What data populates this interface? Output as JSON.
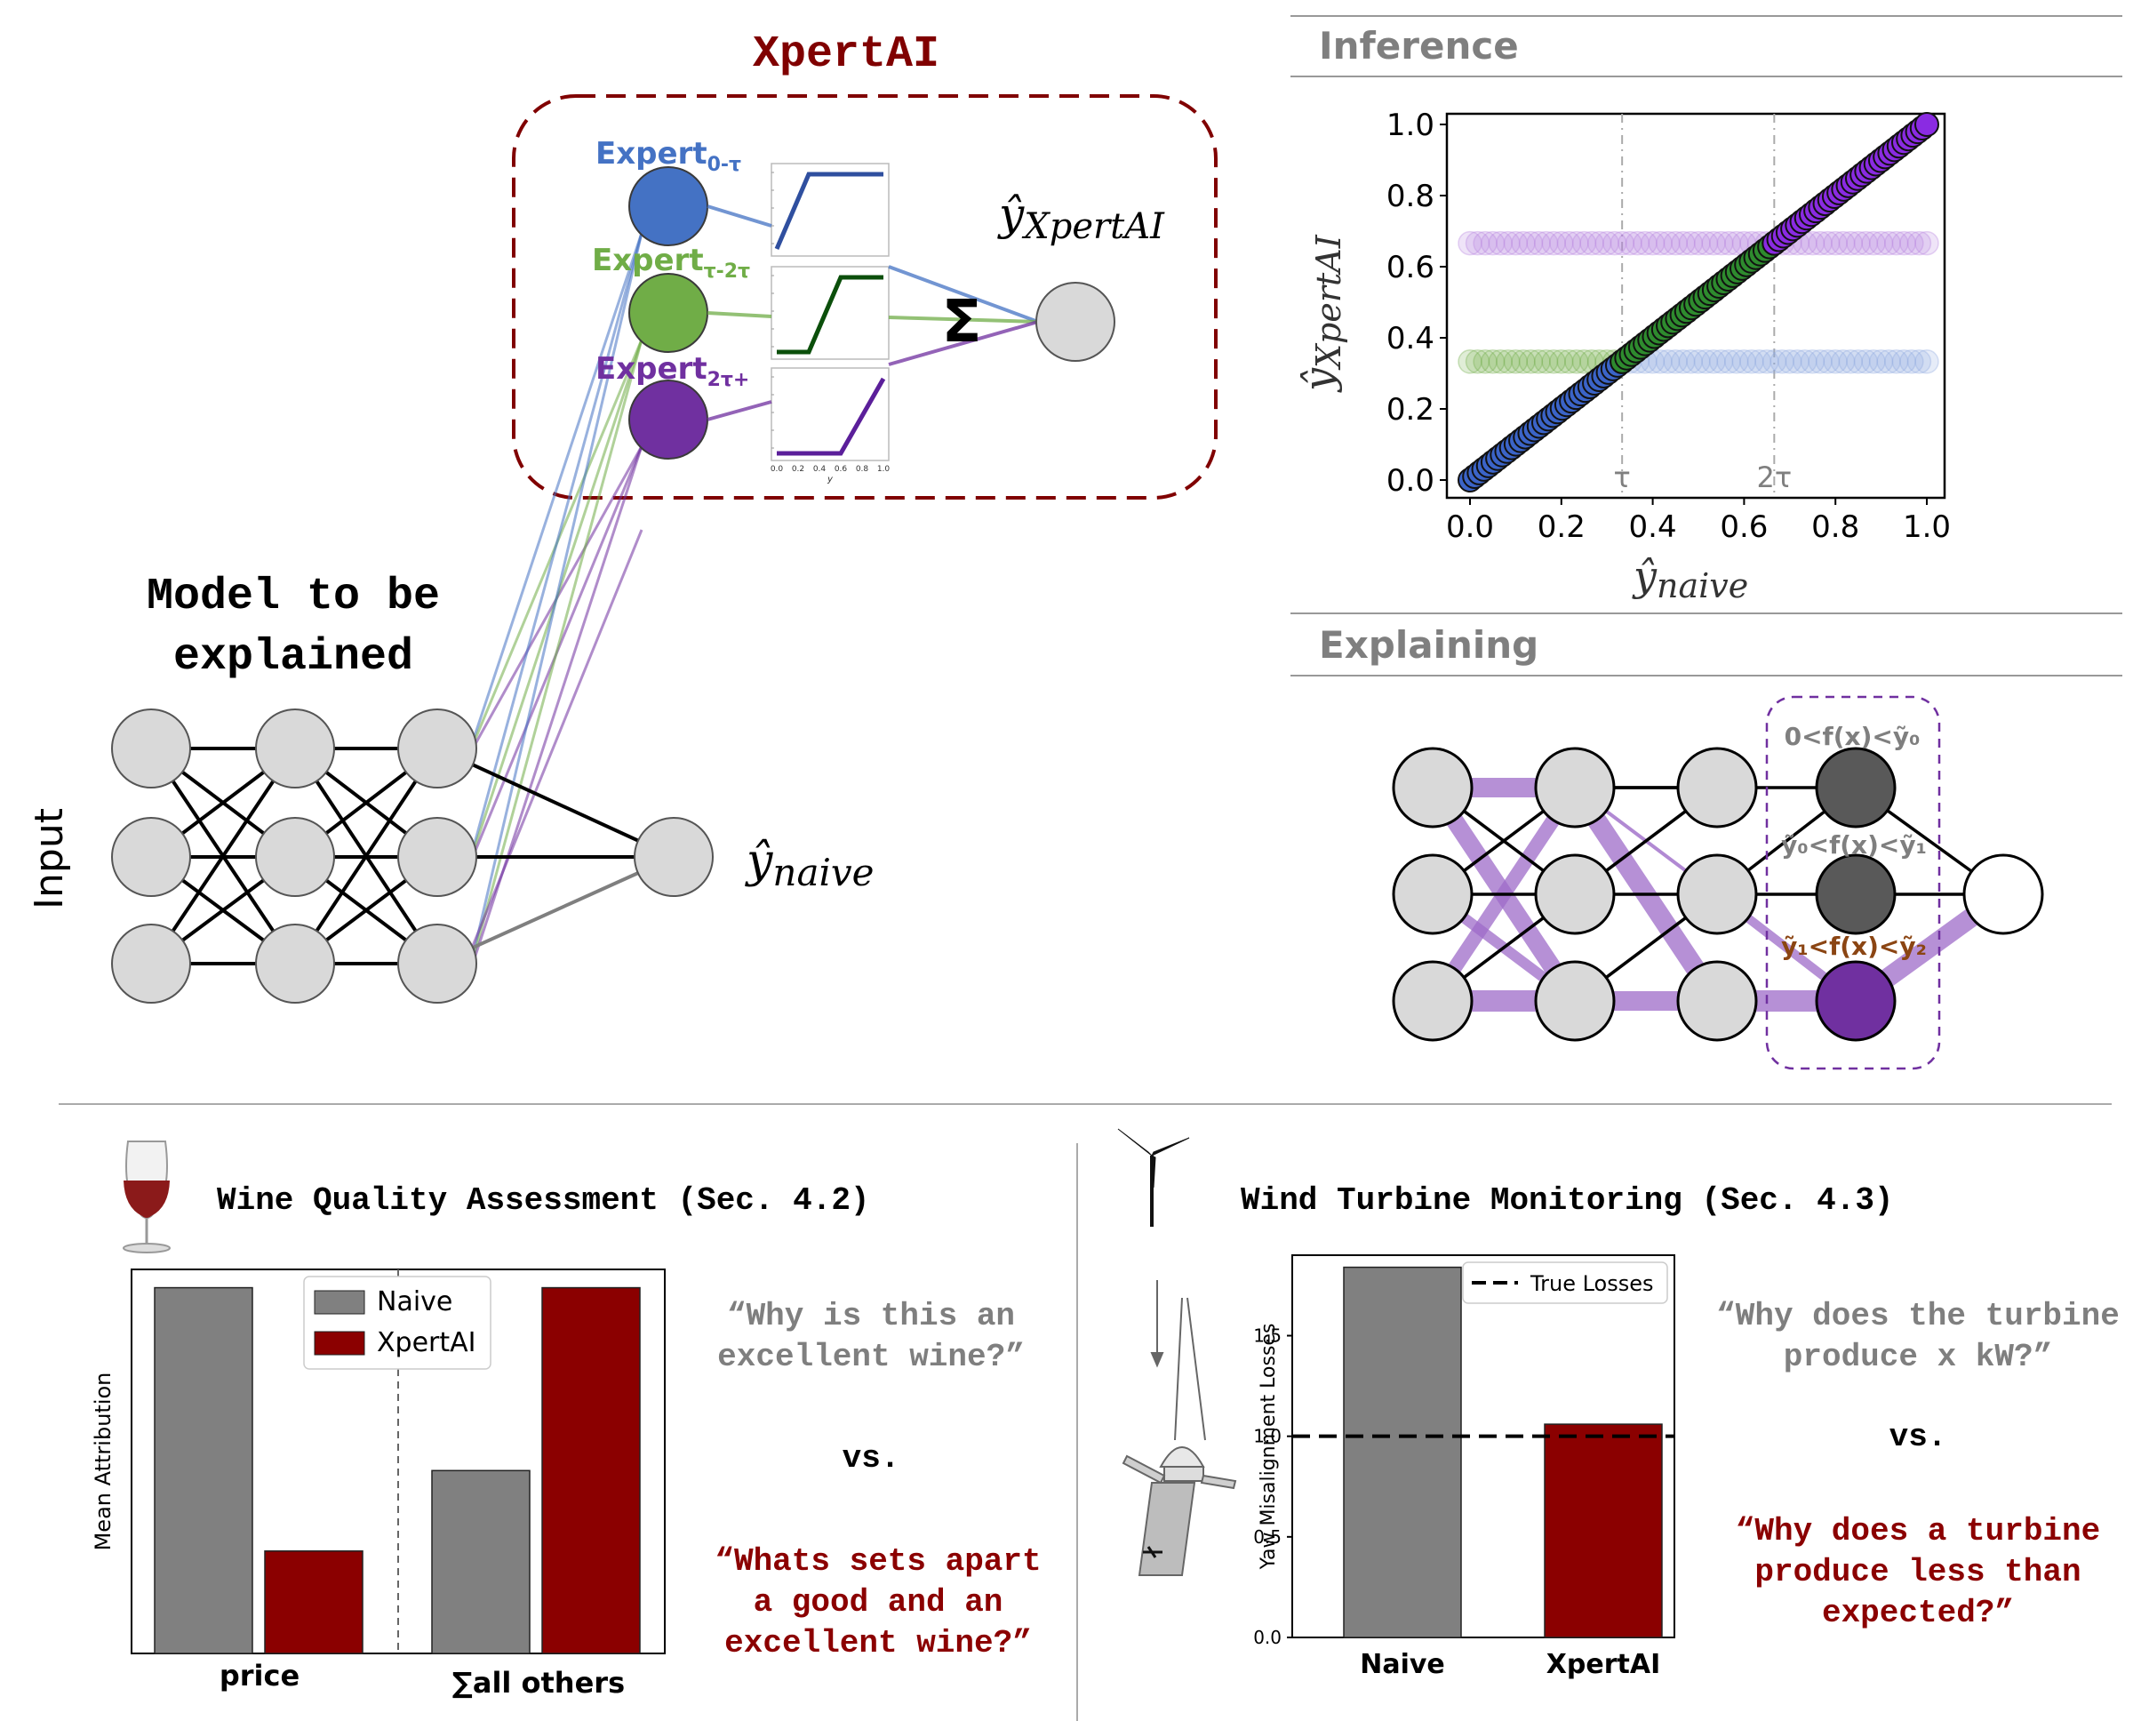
{
  "figure": {
    "xpertai_title": "XpertAI",
    "model_title_line1": "Model to be",
    "model_title_line2": "explained",
    "input_label": "Input",
    "naive_output_label": "ŷ",
    "naive_output_sub": "naive",
    "xpertai_output_label": "ŷ",
    "xpertai_output_sub": "XpertAI",
    "sum_symbol": "Σ",
    "experts": [
      {
        "label": "Expert",
        "sub": "0-τ",
        "color": "#4472c4",
        "ramp": [
          0.0,
          0.3
        ]
      },
      {
        "label": "Expert",
        "sub": "τ-2τ",
        "color": "#70ad47",
        "ramp": [
          0.3,
          0.6
        ]
      },
      {
        "label": "Expert",
        "sub": "2τ+",
        "color": "#7030a0",
        "ramp": [
          0.6,
          1.0
        ]
      }
    ],
    "mini_plot_ticks": [
      "0.0",
      "0.2",
      "0.4",
      "0.6",
      "0.8",
      "1.0"
    ],
    "mini_plot_xlabel": "y"
  },
  "inference": {
    "section_title": "Inference",
    "chart_data": {
      "type": "scatter",
      "xlabel_base": "ŷ",
      "xlabel_sub": "naive",
      "ylabel_base": "ŷ",
      "ylabel_sub": "XpertAI",
      "xlim": [
        0.0,
        1.0
      ],
      "ylim": [
        0.0,
        1.0
      ],
      "xticks": [
        "0.0",
        "0.2",
        "0.4",
        "0.6",
        "0.8",
        "1.0"
      ],
      "yticks": [
        "0.0",
        "0.2",
        "0.4",
        "0.6",
        "0.8",
        "1.0"
      ],
      "vlines": [
        {
          "x": 0.333,
          "label": "τ"
        },
        {
          "x": 0.666,
          "label": "2τ"
        }
      ],
      "series": [
        {
          "x_range": [
            0.0,
            0.333
          ],
          "y": "identity",
          "color": "#3b64c8"
        },
        {
          "x_range": [
            0.333,
            0.666
          ],
          "y": "identity",
          "color": "#2e8b2e"
        },
        {
          "x_range": [
            0.666,
            1.0
          ],
          "y": "identity",
          "color": "#8a2be2"
        }
      ],
      "faded_bands": [
        {
          "y": 0.333,
          "x_range": [
            0.0,
            0.333
          ],
          "color": "#70ad47"
        },
        {
          "y": 0.333,
          "x_range": [
            0.333,
            1.0
          ],
          "color": "#8fa8e0"
        },
        {
          "y": 0.666,
          "x_range": [
            0.0,
            1.0
          ],
          "color": "#b784e0"
        }
      ]
    }
  },
  "explaining": {
    "section_title": "Explaining",
    "labels": [
      {
        "text": "0<f(x)<ỹ₀",
        "color": "#7f7f7f"
      },
      {
        "text": "ỹ₀<f(x)<ỹ₁",
        "color": "#7f7f7f"
      },
      {
        "text": "ỹ₁<f(x)<ỹ₂",
        "color": "#8b4513"
      }
    ]
  },
  "wine": {
    "title": "Wine Quality Assessment (Sec. 4.2)",
    "question1_line1": "“Why is this an",
    "question1_line2": "excellent wine?”",
    "vs": "vs.",
    "question2_line1": "“Whats sets apart",
    "question2_line2": "a good and an",
    "question2_line3": "excellent wine?”",
    "chart_data": {
      "type": "bar",
      "categories": [
        "price",
        "∑all others"
      ],
      "ylabel": "Mean Attribution",
      "ylim": [
        0,
        1.05
      ],
      "series": [
        {
          "name": "Naive",
          "values": [
            1.0,
            0.5
          ],
          "color": "#808080"
        },
        {
          "name": "XpertAI",
          "values": [
            0.28,
            1.0
          ],
          "color": "#8b0000"
        }
      ],
      "legend": "top-center"
    }
  },
  "wind": {
    "title": "Wind Turbine Monitoring (Sec. 4.3)",
    "question1_line1": "“Why does the turbine",
    "question1_line2": "produce x kW?”",
    "vs": "vs.",
    "question2_line1": "“Why does a turbine",
    "question2_line2": "produce less than",
    "question2_line3": "expected?”",
    "chart_data": {
      "type": "bar",
      "categories": [
        "Naive",
        "XpertAI"
      ],
      "values": [
        1.84,
        1.06
      ],
      "colors": [
        "#808080",
        "#8b0000"
      ],
      "ylabel": "Yaw Misalignment Losses",
      "ylim": [
        0.0,
        1.9
      ],
      "yticks": [
        "0.0",
        "0.5",
        "1.0",
        "1.5"
      ],
      "reference_line": {
        "y": 1.0,
        "label": "True Losses"
      },
      "legend": "top-right"
    }
  }
}
